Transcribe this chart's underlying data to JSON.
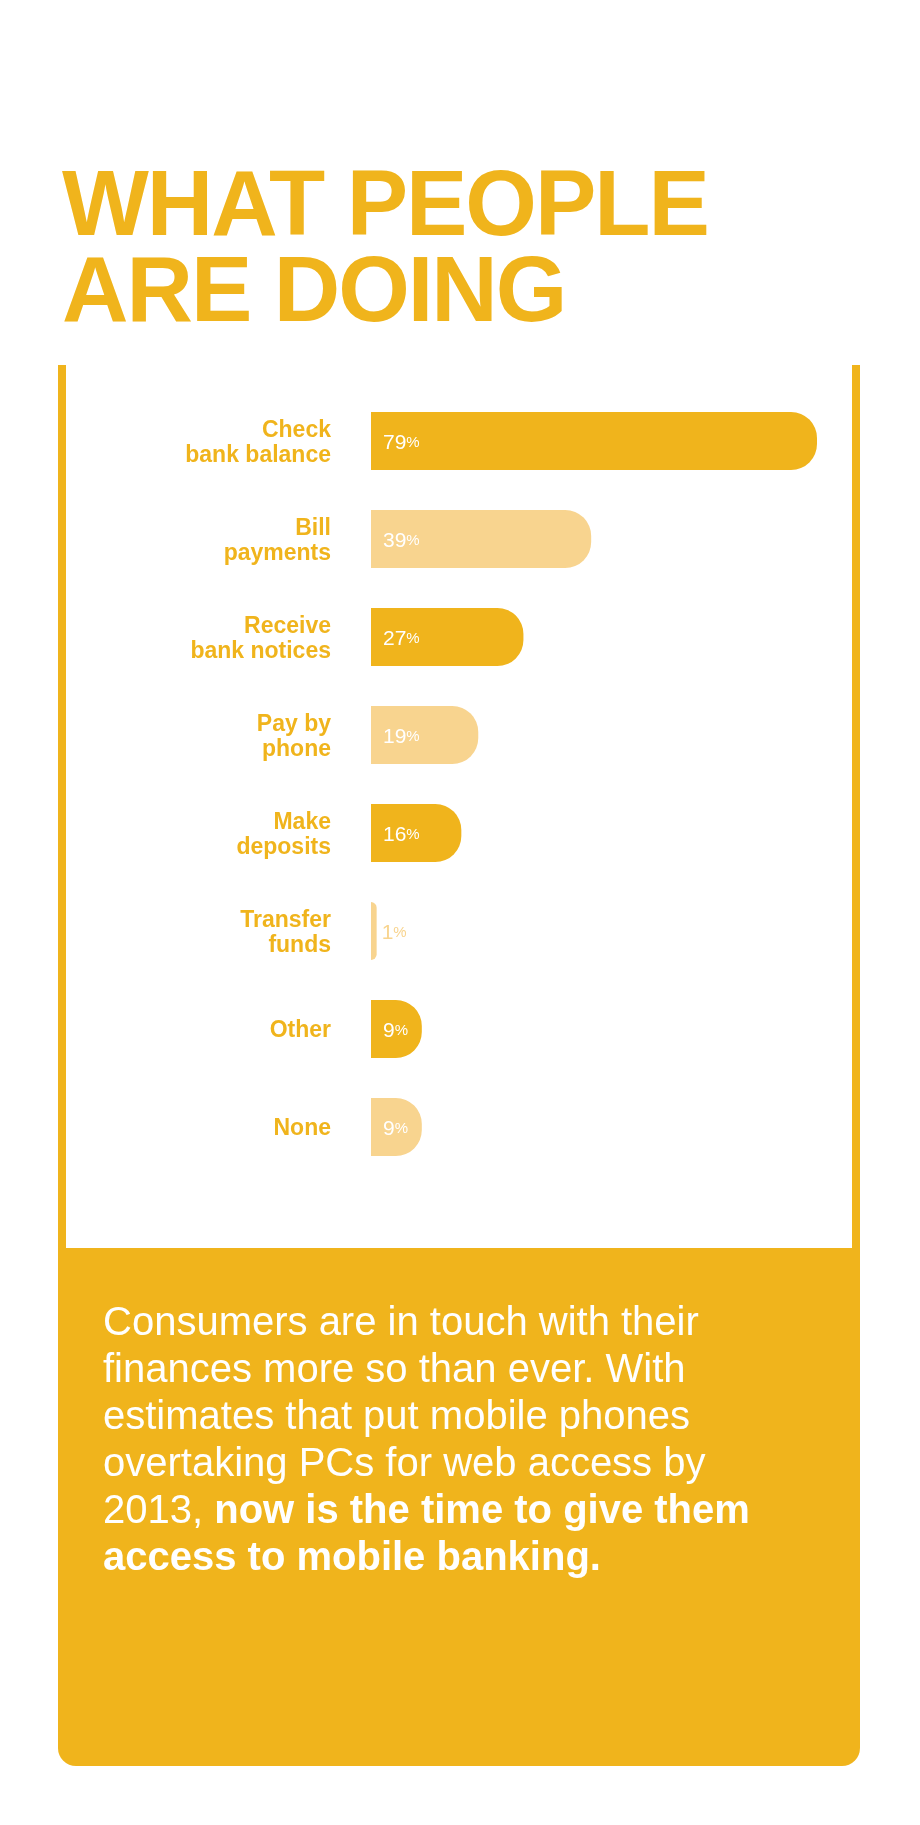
{
  "chart_data": {
    "type": "bar",
    "orientation": "horizontal",
    "title": "WHAT PEOPLE\nARE DOING",
    "categories": [
      "Check\nbank balance",
      "Bill\npayments",
      "Receive\nbank notices",
      "Pay by\nphone",
      "Make\ndeposits",
      "Transfer\nfunds",
      "Other",
      "None"
    ],
    "values": [
      79,
      39,
      27,
      19,
      16,
      1,
      9,
      9
    ],
    "colors": [
      "#f0b41c",
      "#f8d48f",
      "#f0b41c",
      "#f8d48f",
      "#f0b41c",
      "#f8d48f",
      "#f0b41c",
      "#f8d48f"
    ],
    "value_labels": [
      "79%",
      "39%",
      "27%",
      "19%",
      "16%",
      "1%",
      "9%",
      "9%"
    ],
    "annotations": [
      "Consumers are in touch with their finances more so than ever. With estimates that put mobile phones overtaking PCs for web access by 2013, ",
      "now is the time to give them access to mobile banking."
    ]
  }
}
